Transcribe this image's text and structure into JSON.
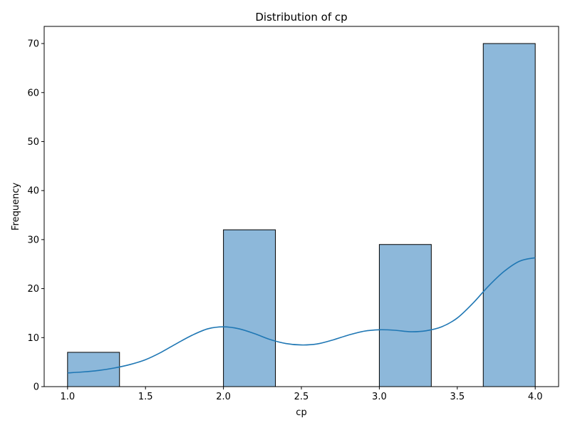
{
  "chart_data": {
    "type": "bar",
    "title": "Distribution of cp",
    "xlabel": "cp",
    "ylabel": "Frequency",
    "xlim": [
      0.85,
      4.15
    ],
    "ylim": [
      0,
      73.5
    ],
    "x_ticks": [
      1.0,
      1.5,
      2.0,
      2.5,
      3.0,
      3.5,
      4.0
    ],
    "x_tick_labels": [
      "1.0",
      "1.5",
      "2.0",
      "2.5",
      "3.0",
      "3.5",
      "4.0"
    ],
    "y_ticks": [
      0,
      10,
      20,
      30,
      40,
      50,
      60,
      70
    ],
    "y_tick_labels": [
      "0",
      "10",
      "20",
      "30",
      "40",
      "50",
      "60",
      "70"
    ],
    "grid": false,
    "bins": [
      {
        "x0": 1.0,
        "x1": 1.3333,
        "count": 7
      },
      {
        "x0": 1.3333,
        "x1": 1.6667,
        "count": 0
      },
      {
        "x0": 1.6667,
        "x1": 2.0,
        "count": 0
      },
      {
        "x0": 2.0,
        "x1": 2.3333,
        "count": 32
      },
      {
        "x0": 2.3333,
        "x1": 2.6667,
        "count": 0
      },
      {
        "x0": 2.6667,
        "x1": 3.0,
        "count": 0
      },
      {
        "x0": 3.0,
        "x1": 3.3333,
        "count": 29
      },
      {
        "x0": 3.3333,
        "x1": 3.6667,
        "count": 0
      },
      {
        "x0": 3.6667,
        "x1": 4.0,
        "count": 70
      }
    ],
    "kde": {
      "x": [
        1.0,
        1.1,
        1.2,
        1.3,
        1.4,
        1.5,
        1.6,
        1.7,
        1.8,
        1.9,
        2.0,
        2.1,
        2.2,
        2.3,
        2.4,
        2.5,
        2.6,
        2.7,
        2.8,
        2.9,
        3.0,
        3.1,
        3.2,
        3.3,
        3.4,
        3.5,
        3.6,
        3.7,
        3.8,
        3.9,
        4.0
      ],
      "y": [
        2.8,
        3.0,
        3.3,
        3.8,
        4.5,
        5.5,
        7.0,
        8.8,
        10.5,
        11.8,
        12.2,
        11.8,
        10.8,
        9.6,
        8.8,
        8.5,
        8.7,
        9.5,
        10.5,
        11.3,
        11.6,
        11.5,
        11.2,
        11.4,
        12.2,
        14.0,
        17.0,
        20.5,
        23.5,
        25.6,
        26.3
      ]
    },
    "colors": {
      "bar_fill": "#8db8da",
      "bar_edge": "#000000",
      "kde_line": "#1f77b4"
    }
  }
}
